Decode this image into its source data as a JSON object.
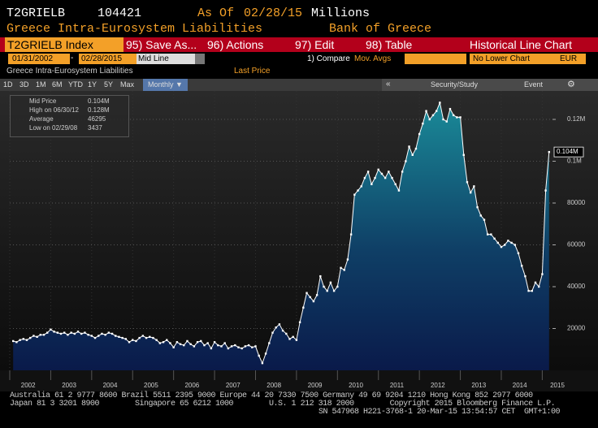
{
  "header": {
    "ticker": "T2GRIELB",
    "code": "104421",
    "as_of_label": "As Of",
    "as_of": "02/28/15",
    "units": "Millions",
    "name": "Greece Intra-Eurosystem Liabilities",
    "source": "Bank of Greece"
  },
  "toolbar": {
    "security": "T2GRIELB Index",
    "items": [
      "95) Save As...",
      "96) Actions",
      "97) Edit",
      "98) Table"
    ],
    "view": "Historical Line Chart"
  },
  "date_row": {
    "start": "01/31/2002",
    "end": "02/28/2015",
    "mode": "Mid Line",
    "compare": "1) Compare",
    "mov_avgs": "Mov. Avgs",
    "lower": "No Lower Chart",
    "currency": "EUR"
  },
  "legend_row": {
    "security": "Greece Intra-Eurosystem Liabilities",
    "field": "Last Price"
  },
  "buttons": [
    "1D",
    "3D",
    "1M",
    "6M",
    "YTD",
    "1Y",
    "5Y",
    "Max",
    "Monthly ▼"
  ],
  "tools": [
    "Security/Study",
    "Event"
  ],
  "stats": [
    [
      "Mid Price",
      "0.104M"
    ],
    [
      "High on 06/30/12",
      "0.128M"
    ],
    [
      "Average",
      "46295"
    ],
    [
      "Low on 02/29/08",
      "3437"
    ]
  ],
  "last_label": "0.104M",
  "footer": [
    "Australia 61 2 9777 8600 Brazil 5511 2395 9000 Europe 44 20 7330 7500 Germany 49 69 9204 1210 Hong Kong 852 2977 6000",
    "Japan 81 3 3201 8900        Singapore 65 6212 1000        U.S. 1 212 318 2000        Copyright 2015 Bloomberg Finance L.P.",
    "SN 547968 H221-3768-1 20-Mar-15 13:54:57 CET  GMT+1:00"
  ],
  "chart_data": {
    "type": "line",
    "color": "#ffffff",
    "grid": true,
    "series": [
      {
        "name": "Greece Intra-Eurosystem Liabilities",
        "color": "#ffffff",
        "values": [
          14000,
          13500,
          14500,
          15000,
          14500,
          15500,
          16500,
          16000,
          17000,
          17000,
          18000,
          19500,
          18500,
          18000,
          17500,
          18000,
          17000,
          18000,
          17500,
          18500,
          17500,
          18000,
          17000,
          16500,
          15500,
          16500,
          17500,
          17000,
          18000,
          17500,
          16500,
          16000,
          15500,
          15000,
          13500,
          14500,
          14000,
          15500,
          16500,
          15500,
          16000,
          15500,
          14500,
          13000,
          13500,
          14500,
          13000,
          11000,
          13500,
          12500,
          12000,
          14000,
          12500,
          11500,
          13500,
          14000,
          12000,
          13000,
          10500,
          13500,
          12000,
          11500,
          13000,
          10500,
          11500,
          12000,
          11000,
          10500,
          11500,
          12000,
          11000,
          11500,
          7000,
          3437,
          8000,
          13000,
          18000,
          20500,
          22000,
          19000,
          17500,
          15000,
          16000,
          14500,
          23000,
          30000,
          37000,
          35000,
          33000,
          36000,
          45000,
          40000,
          38000,
          42000,
          38000,
          40000,
          49000,
          48000,
          53000,
          65000,
          84000,
          86000,
          88000,
          92000,
          95000,
          89000,
          92000,
          96000,
          94000,
          92000,
          95000,
          92000,
          89000,
          86000,
          95000,
          100000,
          107000,
          103000,
          106000,
          113000,
          118000,
          124000,
          120000,
          122000,
          124000,
          128000,
          120000,
          119000,
          125000,
          122000,
          121000,
          121000,
          103000,
          90000,
          85000,
          88000,
          78000,
          74000,
          72000,
          65000,
          65000,
          63000,
          61000,
          59000,
          60000,
          62000,
          61000,
          60000,
          56000,
          50000,
          45000,
          38000,
          38000,
          42000,
          40000,
          46000,
          86000,
          104421
        ]
      }
    ],
    "xlim": [
      2002,
      2015.25
    ],
    "xticks": [
      2002,
      2003,
      2004,
      2005,
      2006,
      2007,
      2008,
      2009,
      2010,
      2011,
      2012,
      2013,
      2014,
      2015
    ],
    "ylim": [
      0,
      133600
    ],
    "yticks": [
      20000,
      40000,
      60000,
      80000,
      {
        "value": 100000,
        "label": "0.1M"
      },
      {
        "value": 120000,
        "label": "0.12M"
      }
    ]
  }
}
